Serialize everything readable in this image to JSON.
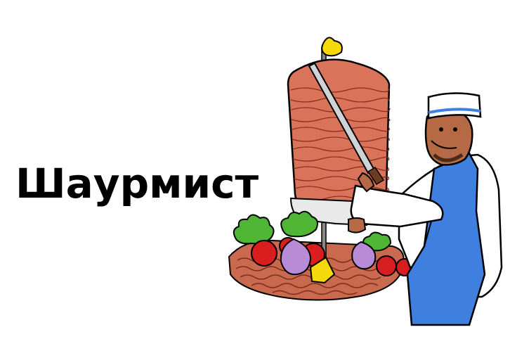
{
  "title": "Шаурмист",
  "colors": {
    "background": "#ffffff",
    "title": "#000000",
    "meat": "#d9735a",
    "meat_dark": "#a84a35",
    "apron": "#3f7fe0",
    "skin": "#b56a45",
    "lettuce": "#4fb534",
    "tomato": "#d81e1e",
    "onion": "#b98ad6",
    "lemon": "#f5d90a"
  },
  "illustration": {
    "icon": "shawarma-chef-icon"
  }
}
